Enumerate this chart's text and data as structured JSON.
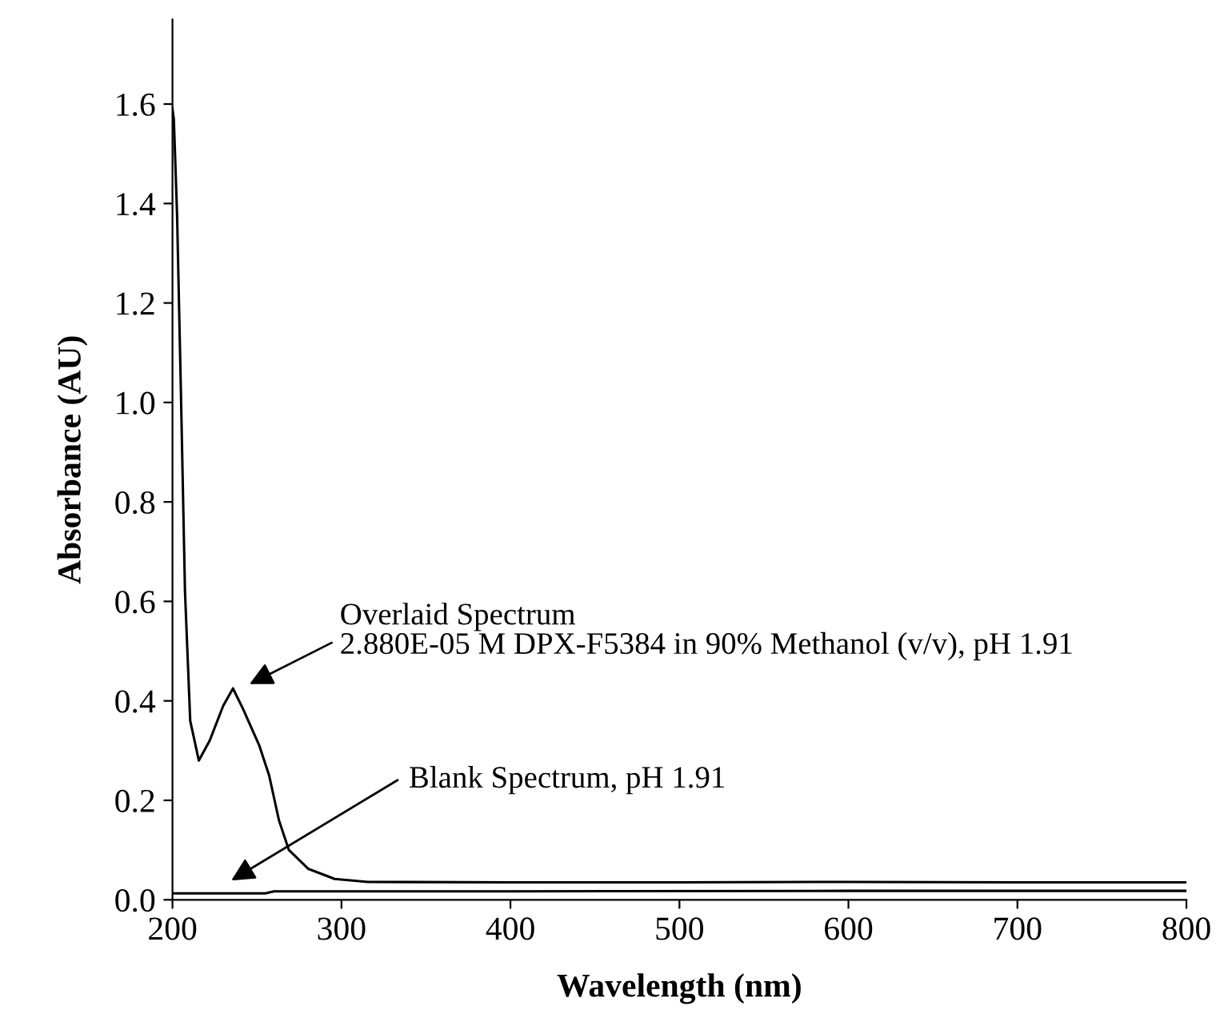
{
  "chart_data": {
    "type": "line",
    "xlabel": "Wavelength (nm)",
    "ylabel": "Absorbance (AU)",
    "xlim": [
      200,
      800
    ],
    "xticks": [
      200,
      300,
      400,
      500,
      600,
      700,
      800
    ],
    "ylim": [
      0,
      1.77
    ],
    "yticks": [
      {
        "value": 0,
        "label": "0.0"
      },
      0.2,
      0.4,
      0.6,
      0.8,
      {
        "value": 1,
        "label": "1.0"
      },
      1.2,
      1.4,
      1.6
    ],
    "grid": false,
    "legend": false,
    "marker": "none",
    "line_style": "solid",
    "series": [
      {
        "color": "#000000",
        "x": [
          200,
          200.8,
          202.7,
          205,
          207.4,
          210.5,
          215.6,
          222,
          230,
          235.8,
          241.6,
          251.4,
          257.2,
          263,
          268.9,
          280.5,
          296,
          315.6,
          400,
          500,
          600,
          700,
          800
        ],
        "values": [
          1.59,
          1.57,
          1.38,
          1.02,
          0.62,
          0.36,
          0.28,
          0.32,
          0.39,
          0.425,
          0.385,
          0.31,
          0.25,
          0.16,
          0.1,
          0.062,
          0.042,
          0.036,
          0.035,
          0.035,
          0.036,
          0.035,
          0.035
        ]
      },
      {
        "color": "#000000",
        "x": [
          200,
          255,
          260,
          400,
          600,
          800
        ],
        "values": [
          0.013,
          0.013,
          0.017,
          0.017,
          0.018,
          0.018
        ]
      }
    ],
    "annotations": [
      "Overlaid Spectrum\n2.880E-05 M DPX-F5384 in 90% Methanol (v/v), pH 1.91",
      "Blank Spectrum, pH 1.91"
    ]
  }
}
